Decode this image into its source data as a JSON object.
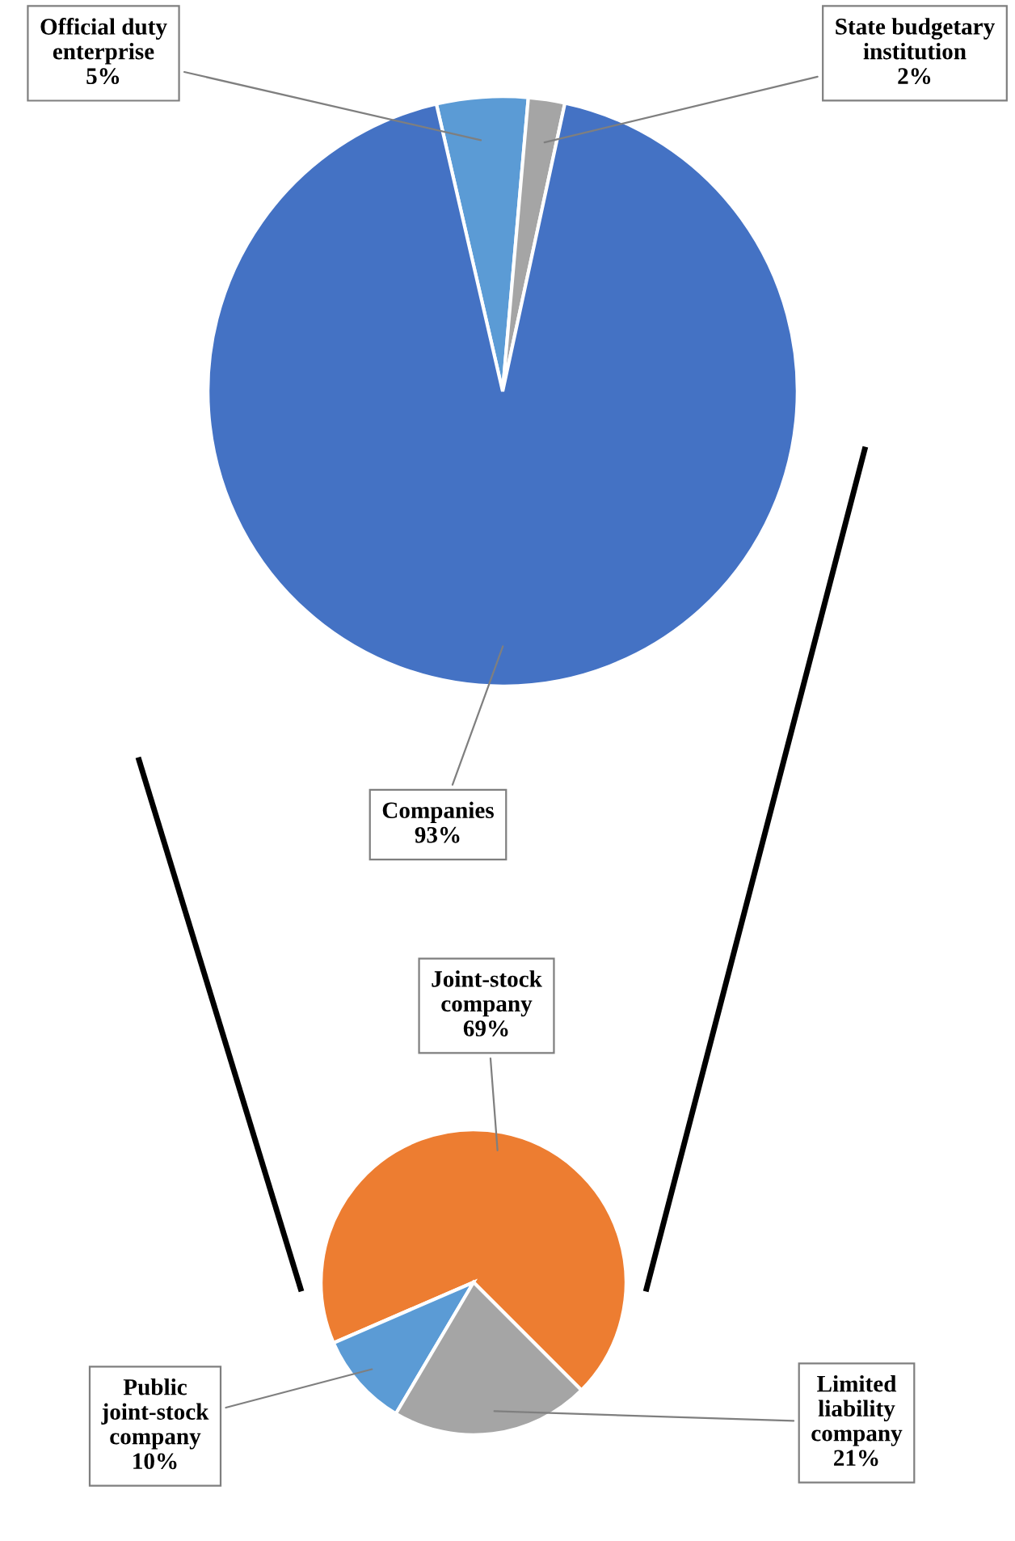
{
  "chart_data": [
    {
      "type": "pie",
      "value_labels": [
        "5%",
        "2%",
        "93%"
      ],
      "categories": [
        "Official duty enterprise",
        "State budgetary institution",
        "Companies"
      ],
      "values": [
        5,
        2,
        93
      ],
      "colors": [
        "#5b9bd5",
        "#a5a5a5",
        "#4472c4"
      ]
    },
    {
      "type": "pie",
      "value_labels": [
        "69%",
        "10%",
        "21%"
      ],
      "categories": [
        "Joint-stock company",
        "Public joint-stock company",
        "Limited liability company"
      ],
      "values": [
        69,
        10,
        21
      ],
      "colors": [
        "#ed7d31",
        "#5b9bd5",
        "#a5a5a5"
      ]
    }
  ]
}
